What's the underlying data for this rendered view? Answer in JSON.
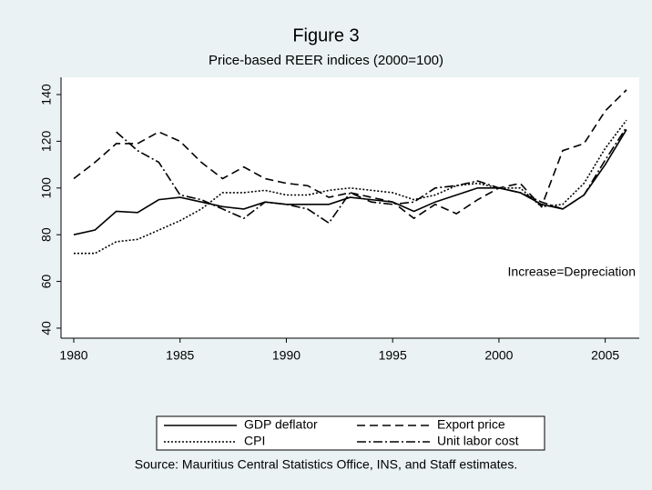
{
  "chart_data": {
    "type": "line",
    "title": "Figure 3",
    "subtitle": "Price-based REER indices (2000=100)",
    "annotation": "Increase=Depreciation",
    "source": "Source: Mauritius Central Statistics Office, INS, and Staff estimates.",
    "x": [
      1980,
      1981,
      1982,
      1983,
      1984,
      1985,
      1986,
      1987,
      1988,
      1989,
      1990,
      1991,
      1992,
      1993,
      1994,
      1995,
      1996,
      1997,
      1998,
      1999,
      2000,
      2001,
      2002,
      2003,
      2004,
      2005,
      2006
    ],
    "xlim": [
      1979.4,
      2006.6
    ],
    "xticks": [
      1980,
      1985,
      1990,
      1995,
      2000,
      2005
    ],
    "ylim": [
      35.7,
      147.4
    ],
    "yticks": [
      40,
      60,
      80,
      100,
      120,
      140
    ],
    "series": [
      {
        "name": "GDP deflator",
        "color": "#000000",
        "dash": "none",
        "values": [
          80,
          82,
          90,
          89.5,
          95,
          96,
          94,
          92,
          91,
          94,
          93,
          93,
          93,
          96,
          95,
          94,
          90,
          94,
          97,
          100,
          100,
          98,
          93,
          91,
          97,
          110,
          125
        ]
      },
      {
        "name": "Export price",
        "color": "#000000",
        "dash": "9,5",
        "values": [
          104,
          111,
          119,
          119,
          124,
          120,
          111,
          104,
          109,
          104,
          102,
          101,
          96,
          98,
          96,
          94,
          87,
          93,
          89,
          95,
          100,
          102,
          92,
          116,
          119,
          133,
          142
        ]
      },
      {
        "name": "CPI",
        "color": "#000000",
        "dash": "2,2",
        "values": [
          72,
          72,
          77,
          78,
          82,
          86,
          91,
          98,
          98,
          99,
          97,
          97,
          99,
          100,
          99,
          98,
          95,
          97,
          101,
          102,
          100,
          100,
          92,
          93,
          102,
          117,
          129
        ]
      },
      {
        "name": "Unit labor cost",
        "color": "#000000",
        "dash": "10,3,2,3",
        "values": [
          null,
          null,
          124,
          116,
          111,
          97,
          95,
          91,
          87,
          94,
          93,
          91,
          85,
          98,
          94,
          93,
          94,
          100,
          101,
          103,
          100,
          98,
          94,
          91,
          97,
          112,
          126
        ]
      }
    ]
  }
}
